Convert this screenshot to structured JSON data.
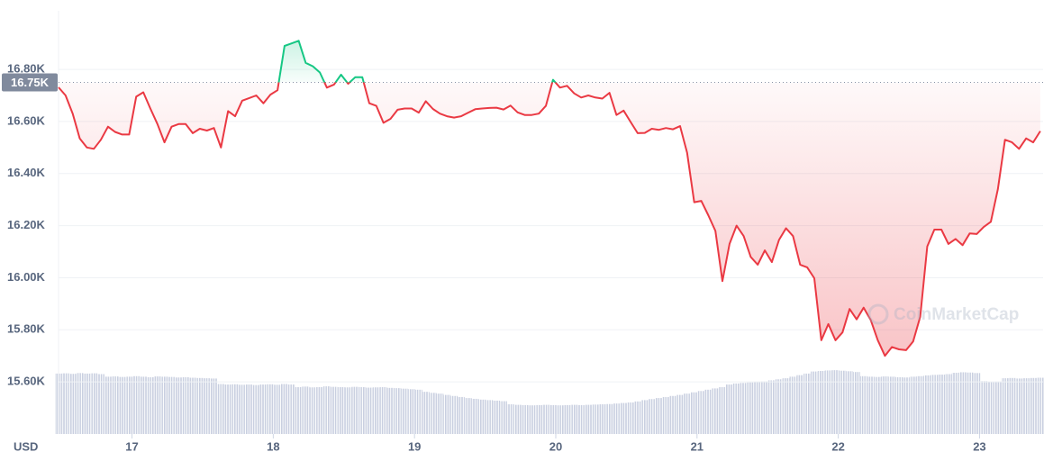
{
  "chart_data": {
    "type": "line",
    "currency": "USD",
    "watermark": "CoinMarketCap",
    "up_color": "#16c784",
    "down_color": "#ea3943",
    "volume_color": "#c9cfe0",
    "grid": true,
    "baseline": {
      "value": 16750,
      "label": "16.75K"
    },
    "xlim": [
      16.48,
      23.45
    ],
    "xticks": [
      17,
      18,
      19,
      20,
      21,
      22,
      23
    ],
    "ylim": [
      15400,
      17025
    ],
    "yticks": [
      {
        "value": 15600,
        "label": "15.60K"
      },
      {
        "value": 15800,
        "label": "15.80K"
      },
      {
        "value": 16000,
        "label": "16.00K"
      },
      {
        "value": 16200,
        "label": "16.20K"
      },
      {
        "value": 16400,
        "label": "16.40K"
      },
      {
        "value": 16600,
        "label": "16.60K"
      },
      {
        "value": 16800,
        "label": "16.80K"
      }
    ],
    "x": [
      16.48,
      16.53,
      16.58,
      16.63,
      16.68,
      16.73,
      16.78,
      16.83,
      16.88,
      16.93,
      16.98,
      17.03,
      17.08,
      17.13,
      17.18,
      17.23,
      17.28,
      17.33,
      17.38,
      17.43,
      17.48,
      17.53,
      17.58,
      17.63,
      17.68,
      17.73,
      17.78,
      17.83,
      17.88,
      17.93,
      17.98,
      18.03,
      18.08,
      18.13,
      18.18,
      18.23,
      18.28,
      18.33,
      18.38,
      18.43,
      18.48,
      18.53,
      18.58,
      18.63,
      18.68,
      18.73,
      18.78,
      18.83,
      18.88,
      18.93,
      18.98,
      19.03,
      19.08,
      19.13,
      19.18,
      19.23,
      19.28,
      19.33,
      19.38,
      19.43,
      19.48,
      19.53,
      19.58,
      19.63,
      19.68,
      19.73,
      19.78,
      19.83,
      19.88,
      19.93,
      19.98,
      20.03,
      20.08,
      20.13,
      20.18,
      20.23,
      20.28,
      20.33,
      20.38,
      20.43,
      20.48,
      20.53,
      20.58,
      20.63,
      20.68,
      20.73,
      20.78,
      20.83,
      20.88,
      20.93,
      20.98,
      21.03,
      21.08,
      21.13,
      21.18,
      21.23,
      21.28,
      21.33,
      21.38,
      21.43,
      21.48,
      21.53,
      21.58,
      21.63,
      21.68,
      21.73,
      21.78,
      21.83,
      21.88,
      21.93,
      21.98,
      22.03,
      22.08,
      22.13,
      22.18,
      22.23,
      22.28,
      22.33,
      22.38,
      22.43,
      22.48,
      22.53,
      22.58,
      22.63,
      22.68,
      22.73,
      22.78,
      22.83,
      22.88,
      22.93,
      22.98,
      23.03,
      23.08,
      23.13,
      23.18,
      23.23,
      23.28,
      23.33,
      23.38,
      23.43
    ],
    "values": [
      16731,
      16700,
      16630,
      16535,
      16500,
      16495,
      16530,
      16580,
      16560,
      16550,
      16550,
      16695,
      16712,
      16650,
      16590,
      16520,
      16580,
      16590,
      16590,
      16555,
      16572,
      16565,
      16575,
      16500,
      16640,
      16620,
      16680,
      16690,
      16700,
      16670,
      16703,
      16720,
      16890,
      16900,
      16910,
      16825,
      16812,
      16788,
      16730,
      16742,
      16780,
      16745,
      16770,
      16770,
      16670,
      16660,
      16595,
      16610,
      16645,
      16650,
      16650,
      16634,
      16678,
      16648,
      16630,
      16620,
      16615,
      16620,
      16634,
      16647,
      16650,
      16652,
      16653,
      16646,
      16661,
      16635,
      16625,
      16625,
      16630,
      16660,
      16760,
      16730,
      16737,
      16708,
      16692,
      16700,
      16692,
      16688,
      16710,
      16625,
      16642,
      16598,
      16555,
      16556,
      16572,
      16568,
      16575,
      16570,
      16582,
      16480,
      16290,
      16295,
      16240,
      16180,
      15987,
      16130,
      16200,
      16160,
      16080,
      16050,
      16105,
      16060,
      16145,
      16190,
      16160,
      16050,
      16040,
      15998,
      15760,
      15822,
      15760,
      15790,
      15880,
      15840,
      15885,
      15837,
      15760,
      15700,
      15734,
      15725,
      15722,
      15755,
      15850,
      16120,
      16185,
      16185,
      16130,
      16149,
      16125,
      16170,
      16168,
      16195,
      16215,
      16340,
      16530,
      16520,
      16495,
      16535,
      16520,
      16563
    ],
    "volume": [
      15632,
      15633,
      15631,
      15634,
      15632,
      15633,
      15630,
      15620,
      15621,
      15619,
      15620,
      15622,
      15620,
      15618,
      15621,
      15620,
      15619,
      15617,
      15618,
      15616,
      15615,
      15614,
      15613,
      15592,
      15590,
      15591,
      15589,
      15590,
      15588,
      15590,
      15591,
      15589,
      15592,
      15590,
      15580,
      15582,
      15579,
      15580,
      15583,
      15581,
      15580,
      15579,
      15581,
      15580,
      15578,
      15579,
      15580,
      15577,
      15576,
      15574,
      15572,
      15570,
      15562,
      15558,
      15555,
      15550,
      15546,
      15542,
      15538,
      15535,
      15532,
      15530,
      15528,
      15526,
      15514,
      15512,
      15511,
      15510,
      15511,
      15512,
      15511,
      15510,
      15511,
      15512,
      15511,
      15512,
      15513,
      15514,
      15515,
      15517,
      15519,
      15521,
      15525,
      15530,
      15534,
      15538,
      15542,
      15546,
      15550,
      15555,
      15560,
      15565,
      15570,
      15575,
      15580,
      15590,
      15594,
      15596,
      15598,
      15600,
      15602,
      15606,
      15610,
      15614,
      15620,
      15626,
      15632,
      15640,
      15642,
      15644,
      15645,
      15643,
      15641,
      15638,
      15622,
      15620,
      15619,
      15621,
      15620,
      15618,
      15617,
      15620,
      15622,
      15625,
      15627,
      15628,
      15630,
      15635,
      15637,
      15636,
      15634,
      15603,
      15600,
      15601,
      15614,
      15615,
      15613,
      15614,
      15615,
      15616
    ]
  }
}
